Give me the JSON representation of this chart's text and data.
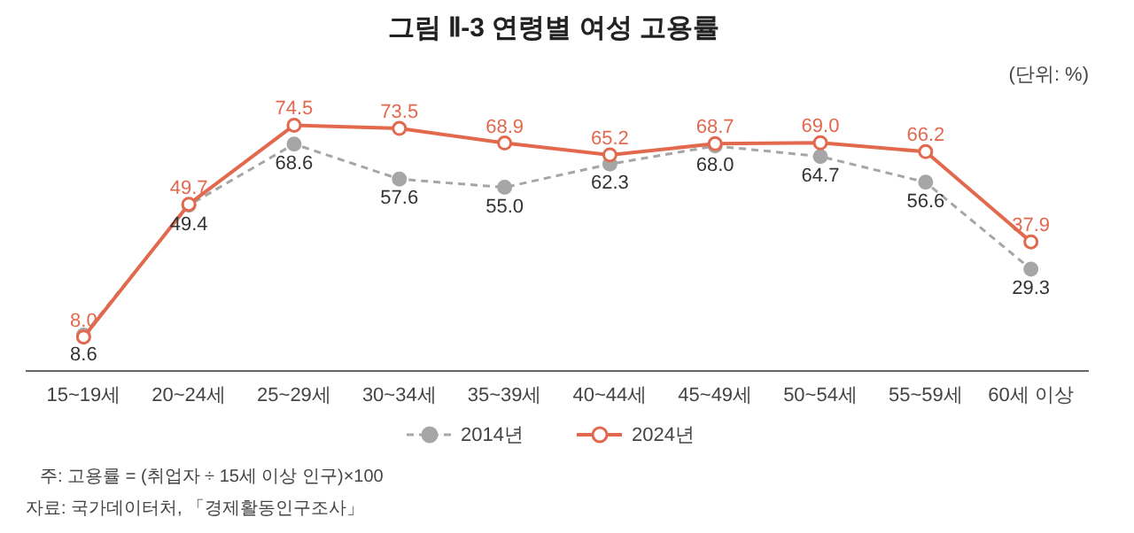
{
  "chart_data": {
    "type": "line",
    "title": "그림 Ⅱ-3  연령별 여성 고용률",
    "categories": [
      "15~19세",
      "20~24세",
      "25~29세",
      "30~34세",
      "35~39세",
      "40~44세",
      "45~49세",
      "50~54세",
      "55~59세",
      "60세 이상"
    ],
    "series": [
      {
        "name": "2014년",
        "color": "#a6a6a6",
        "line_style": "dashed",
        "values": [
          8.6,
          49.4,
          68.6,
          57.6,
          55.0,
          62.3,
          68.0,
          64.7,
          56.6,
          29.3
        ],
        "value_labels": [
          "8.6",
          "49.4",
          "68.6",
          "57.6",
          "55.0",
          "62.3",
          "68.0",
          "64.7",
          "56.6",
          "29.3"
        ]
      },
      {
        "name": "2024년",
        "color": "#e2694e",
        "line_style": "solid",
        "values": [
          8.0,
          49.7,
          74.5,
          73.5,
          68.9,
          65.2,
          68.7,
          69.0,
          66.2,
          37.9
        ],
        "value_labels": [
          "8.0",
          "49.7",
          "74.5",
          "73.5",
          "68.9",
          "65.2",
          "68.7",
          "69.0",
          "66.2",
          "37.9"
        ]
      }
    ],
    "marker": "circle",
    "legend": "bottom",
    "annotations": [
      "(단위: %)",
      "주: 고용률 = (취업자 ÷ 15세 이상 인구)×100",
      "자료: 국가데이터처, 「경제활동인구조사」"
    ]
  }
}
